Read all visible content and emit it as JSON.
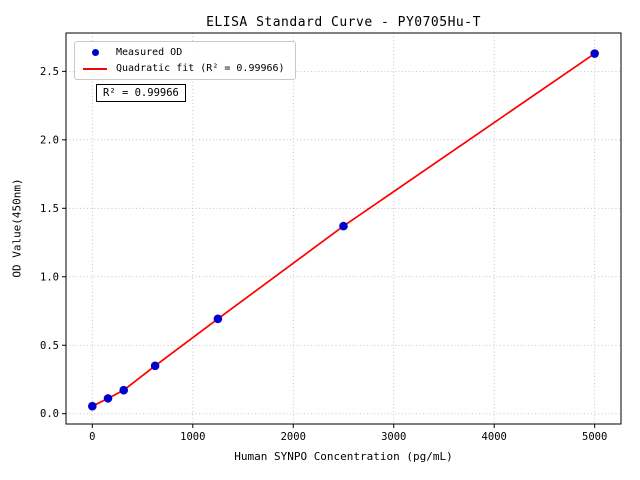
{
  "chart_data": {
    "type": "scatter",
    "title": "ELISA Standard Curve - PY0705Hu-T",
    "xlabel": "Human SYNPO Concentration (pg/mL)",
    "ylabel": "OD Value(450nm)",
    "x": [
      0,
      156.25,
      312.5,
      625,
      1250,
      2500,
      5000
    ],
    "y": [
      0.055,
      0.112,
      0.172,
      0.35,
      0.693,
      1.37,
      2.63
    ],
    "series": [
      {
        "name": "Measured OD",
        "type": "scatter",
        "marker": "dot",
        "color": "#0000cd"
      },
      {
        "name": "Quadratic fit (R² = 0.99966)",
        "type": "line",
        "color": "#ff0000"
      }
    ],
    "r_squared": 0.99966,
    "annotation": "R² = 0.99966",
    "xticks": [
      0,
      1000,
      2000,
      3000,
      4000,
      5000
    ],
    "yticks": [
      0,
      0.5,
      1,
      1.5,
      2,
      2.5
    ],
    "xlim": [
      -262,
      5262
    ],
    "ylim": [
      -0.075,
      2.78
    ],
    "grid": true,
    "grid_color": "#b8b8b8",
    "legend_position": "upper-left",
    "background": "#ffffff"
  }
}
